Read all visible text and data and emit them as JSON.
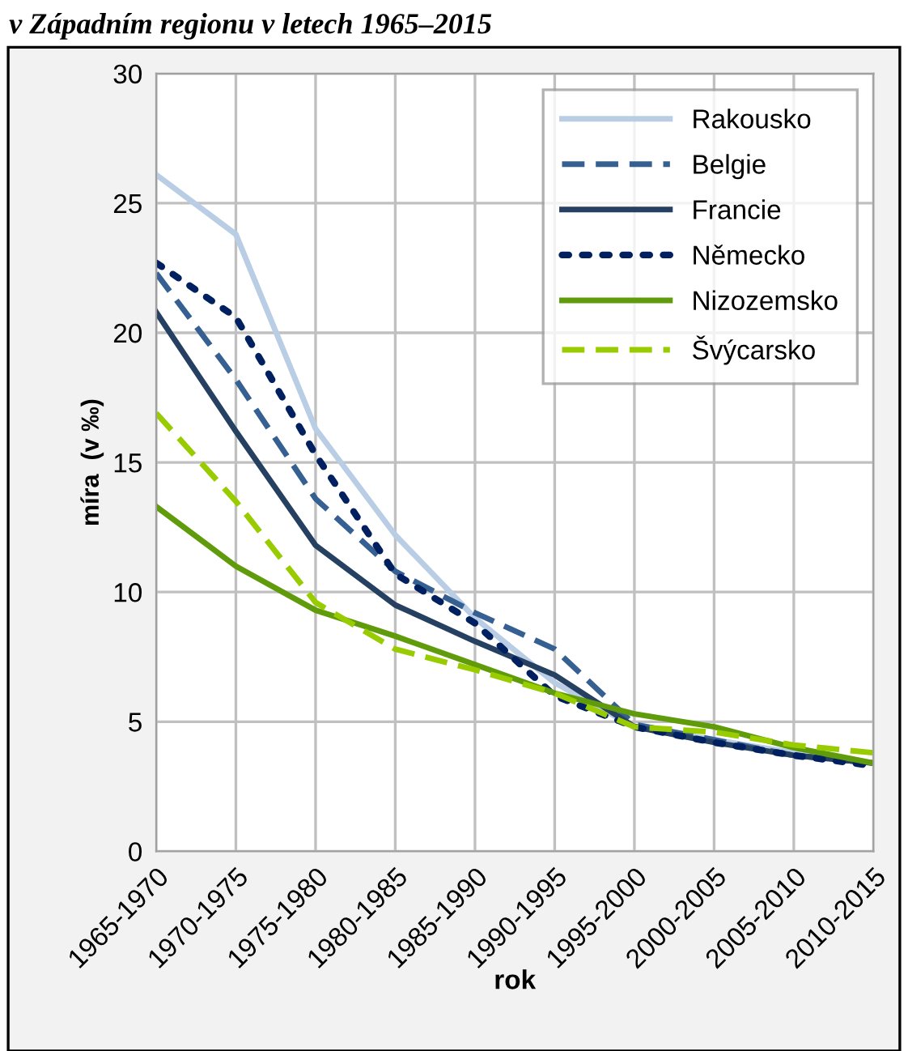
{
  "chart_data": {
    "type": "line",
    "title": "v Západním regionu v letech 1965–2015",
    "xlabel": "rok",
    "ylabel": "míra  (v ‰)",
    "categories": [
      "1965-1970",
      "1970-1975",
      "1975-1980",
      "1980-1985",
      "1985-1990",
      "1990-1995",
      "1995-2000",
      "2000-2005",
      "2005-2010",
      "2010-2015"
    ],
    "series": [
      {
        "name": "Rakousko",
        "color": "#b9cde5",
        "line_style": "solid",
        "values": [
          26.1,
          23.8,
          16.3,
          12.2,
          9.0,
          6.5,
          4.8,
          4.3,
          3.8,
          3.4
        ]
      },
      {
        "name": "Belgie",
        "color": "#376092",
        "line_style": "dashed",
        "values": [
          22.3,
          18.2,
          13.6,
          10.8,
          9.2,
          7.8,
          4.9,
          4.3,
          3.7,
          3.4
        ]
      },
      {
        "name": "Francie",
        "color": "#254061",
        "line_style": "solid",
        "values": [
          20.8,
          16.2,
          11.8,
          9.5,
          8.1,
          6.8,
          4.8,
          4.2,
          3.7,
          3.4
        ]
      },
      {
        "name": "Německo",
        "color": "#002060",
        "line_style": "dotted",
        "values": [
          22.7,
          20.6,
          15.3,
          10.7,
          8.8,
          6.0,
          4.8,
          4.2,
          3.7,
          3.3
        ]
      },
      {
        "name": "Nizozemsko",
        "color": "#5f9b0a",
        "line_style": "solid",
        "values": [
          13.3,
          11.0,
          9.3,
          8.3,
          7.2,
          6.1,
          5.3,
          4.8,
          4.0,
          3.4
        ]
      },
      {
        "name": "Švýcarsko",
        "color": "#99cc00",
        "line_style": "dashed",
        "values": [
          16.9,
          13.5,
          9.6,
          7.8,
          7.0,
          6.1,
          4.8,
          4.6,
          4.1,
          3.8
        ]
      }
    ],
    "ylim": [
      0,
      30
    ],
    "yticks": [
      0,
      5,
      10,
      15,
      20,
      25,
      30
    ],
    "grid": true,
    "legend": "top right",
    "marker": "none"
  }
}
